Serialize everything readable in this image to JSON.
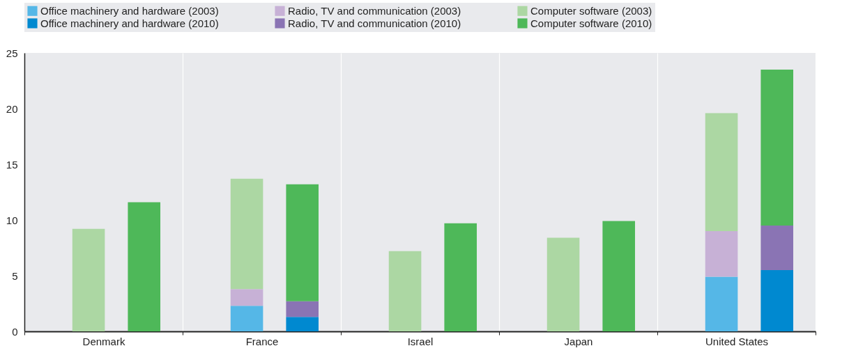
{
  "chart_data": {
    "type": "bar",
    "categories": [
      "Denmark",
      "France",
      "Israel",
      "Japan",
      "United States"
    ],
    "series": [
      {
        "name": "Office machinery and hardware (2003)",
        "color": "#55b7e7",
        "values": [
          null,
          2.3,
          null,
          null,
          4.9
        ],
        "base": [
          null,
          0,
          null,
          null,
          0
        ]
      },
      {
        "name": "Radio, TV and communication (2003)",
        "color": "#c7b1d6",
        "values": [
          null,
          1.5,
          null,
          null,
          4.1
        ],
        "base": [
          null,
          2.3,
          null,
          null,
          4.9
        ]
      },
      {
        "name": "Computer software (2003)",
        "color": "#acd7a3",
        "values": [
          9.2,
          9.9,
          7.2,
          8.4,
          10.6
        ],
        "base": [
          0,
          3.8,
          0,
          0,
          9.0
        ]
      },
      {
        "name": "Office machinery and hardware (2010)",
        "color": "#0089d0",
        "values": [
          null,
          1.3,
          null,
          null,
          5.5
        ],
        "base": [
          null,
          0,
          null,
          null,
          0
        ]
      },
      {
        "name": "Radio, TV and communication (2010)",
        "color": "#8a74b4",
        "values": [
          null,
          1.4,
          null,
          null,
          4.0
        ],
        "base": [
          null,
          1.3,
          null,
          null,
          5.5
        ]
      },
      {
        "name": "Computer software (2010)",
        "color": "#4eb859",
        "values": [
          11.6,
          10.5,
          9.7,
          9.9,
          14.0
        ],
        "base": [
          0,
          2.7,
          0,
          0,
          9.5
        ]
      }
    ],
    "ylim": [
      0,
      25
    ],
    "yticks": [
      0,
      5,
      10,
      15,
      20,
      25
    ],
    "grid": "x",
    "legend": "top"
  }
}
